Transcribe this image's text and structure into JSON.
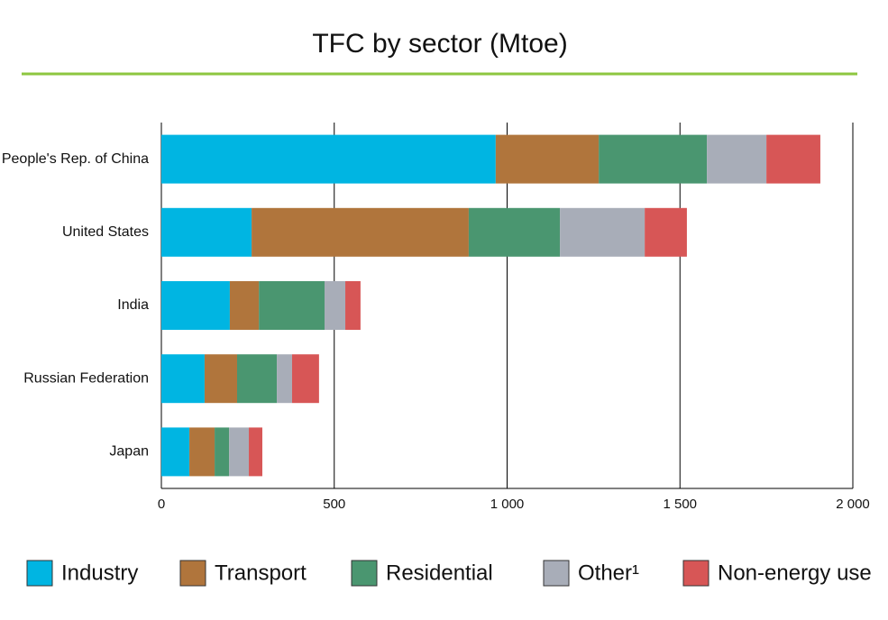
{
  "chart_data": {
    "type": "stacked-bar-horizontal",
    "title": "TFC by sector (Mtoe)",
    "categories": [
      "People's Rep. of China",
      "United States",
      "India",
      "Russian Federation",
      "Japan"
    ],
    "series": [
      {
        "name": "Industry",
        "color": "#00b5e2",
        "values": [
          967,
          261,
          198,
          125,
          81
        ]
      },
      {
        "name": "Transport",
        "color": "#b0753c",
        "values": [
          298,
          628,
          84,
          94,
          73
        ]
      },
      {
        "name": "Residential",
        "color": "#4a9670",
        "values": [
          313,
          264,
          190,
          115,
          42
        ]
      },
      {
        "name": "Other¹",
        "color": "#a8adb8",
        "values": [
          172,
          245,
          60,
          44,
          57
        ]
      },
      {
        "name": "Non-energy use",
        "color": "#d75656",
        "values": [
          156,
          122,
          44,
          78,
          39
        ]
      }
    ],
    "xlim": [
      0,
      2000
    ],
    "xticks": [
      0,
      500,
      {
        "value": 1000,
        "label": "1 000"
      },
      {
        "value": 1500,
        "label": "1 500"
      },
      {
        "value": 2000,
        "label": "2 000"
      }
    ],
    "grid": true
  }
}
